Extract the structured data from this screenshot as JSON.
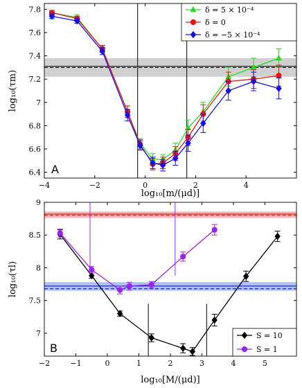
{
  "chart_data": [
    {
      "type": "line",
      "panel_label": "A",
      "xlabel": "log₁₀[m/(μd)]",
      "ylabel": "log₁₀(τm)",
      "xlim": [
        -4,
        6
      ],
      "ylim": [
        6.35,
        7.85
      ],
      "xticks": [
        -4,
        -2,
        0,
        2,
        4
      ],
      "xtick_labels": [
        "−4",
        "−2",
        "0",
        "2",
        "4"
      ],
      "yticks": [
        6.4,
        6.6,
        6.8,
        7.0,
        7.2,
        7.4,
        7.6,
        7.8
      ],
      "ytick_labels": [
        "6.4",
        "6.6",
        "6.8",
        "7",
        "7.2",
        "7.4",
        "7.6",
        "7.8"
      ],
      "legend_position": "top-right",
      "hband": {
        "center": 7.3,
        "low": 7.22,
        "high": 7.38,
        "color": "#aaaaaa"
      },
      "hlines": [
        {
          "y": 7.3,
          "style": "dashed",
          "color": "#000000"
        },
        {
          "y": 7.31,
          "style": "solid",
          "color": "#000000"
        }
      ],
      "vlines": [
        {
          "x": -0.3,
          "y0": 6.35,
          "y1": 7.85,
          "color": "#000000"
        },
        {
          "x": 1.65,
          "y0": 6.35,
          "y1": 7.85,
          "color": "#000000"
        }
      ],
      "series": [
        {
          "name": "δ = 5 × 10⁻⁴",
          "color": "#22dd22",
          "marker": "triangle",
          "x": [
            -3.7,
            -2.7,
            -1.7,
            -0.7,
            -0.2,
            0.3,
            0.7,
            1.2,
            1.7,
            2.3,
            3.3,
            4.3,
            5.3
          ],
          "y": [
            7.77,
            7.73,
            7.46,
            6.92,
            6.65,
            6.51,
            6.51,
            6.59,
            6.78,
            6.92,
            7.22,
            7.3,
            7.38
          ],
          "err": [
            0.02,
            0.02,
            0.03,
            0.05,
            0.04,
            0.05,
            0.04,
            0.06,
            0.07,
            0.08,
            0.08,
            0.08,
            0.08
          ]
        },
        {
          "name": "δ = 0",
          "color": "#ee1111",
          "marker": "circle",
          "x": [
            -3.7,
            -2.7,
            -1.7,
            -0.7,
            -0.2,
            0.3,
            0.7,
            1.2,
            1.7,
            2.3,
            3.3,
            4.3,
            5.3
          ],
          "y": [
            7.77,
            7.72,
            7.46,
            6.92,
            6.64,
            6.47,
            6.48,
            6.56,
            6.7,
            6.9,
            7.18,
            7.2,
            7.23
          ],
          "err": [
            0.02,
            0.02,
            0.03,
            0.05,
            0.04,
            0.05,
            0.05,
            0.06,
            0.07,
            0.08,
            0.08,
            0.08,
            0.09
          ]
        },
        {
          "name": "δ = −5 × 10⁻⁴",
          "color": "#1111ee",
          "marker": "diamond",
          "x": [
            -3.7,
            -2.7,
            -1.7,
            -0.7,
            -0.2,
            0.3,
            0.7,
            1.2,
            1.7,
            2.3,
            3.3,
            4.3,
            5.3
          ],
          "y": [
            7.74,
            7.7,
            7.44,
            6.89,
            6.63,
            6.48,
            6.46,
            6.52,
            6.65,
            6.82,
            7.1,
            7.18,
            7.12
          ],
          "err": [
            0.02,
            0.02,
            0.03,
            0.05,
            0.04,
            0.05,
            0.05,
            0.06,
            0.07,
            0.08,
            0.08,
            0.08,
            0.09
          ]
        }
      ]
    },
    {
      "type": "line",
      "panel_label": "B",
      "xlabel": "log₁₀[M/(μd)]",
      "ylabel": "log₁₀(τl)",
      "xlim": [
        -2,
        6
      ],
      "ylim": [
        6.65,
        9.0
      ],
      "xticks": [
        -2,
        -1,
        0,
        1,
        2,
        3,
        4,
        5
      ],
      "xtick_labels": [
        "−2",
        "−1",
        "0",
        "1",
        "2",
        "3",
        "4",
        "5"
      ],
      "yticks": [
        7.0,
        7.5,
        8.0,
        8.5,
        9.0
      ],
      "ytick_labels": [
        "7",
        "7.5",
        "8",
        "8.5",
        "9"
      ],
      "legend_position": "bottom-right",
      "hbands": [
        {
          "center": 8.8,
          "low": 8.76,
          "high": 8.86,
          "color": "#f08080"
        },
        {
          "center": 7.7,
          "low": 7.65,
          "high": 7.78,
          "color": "#6a8ef0"
        }
      ],
      "hlines": [
        {
          "y": 8.8,
          "style": "dashed",
          "color": "#cc0000"
        },
        {
          "y": 8.82,
          "style": "solid",
          "color": "#cc0000"
        },
        {
          "y": 7.68,
          "style": "dashed",
          "color": "#0000cc"
        },
        {
          "y": 7.72,
          "style": "solid",
          "color": "#0000cc"
        }
      ],
      "vlines": [
        {
          "x": -0.55,
          "y0": 7.95,
          "y1": 9.0,
          "color": "#aa22ee"
        },
        {
          "x": 2.15,
          "y0": 7.88,
          "y1": 9.0,
          "color": "#aa22ee"
        },
        {
          "x": 1.3,
          "y0": 6.65,
          "y1": 7.45,
          "color": "#000000"
        },
        {
          "x": 3.15,
          "y0": 6.65,
          "y1": 7.45,
          "color": "#000000"
        }
      ],
      "series": [
        {
          "name": "S = 10",
          "color": "#000000",
          "marker": "diamond",
          "x": [
            -1.5,
            -0.5,
            0.4,
            1.4,
            2.4,
            2.7,
            3.4,
            4.4,
            5.4
          ],
          "y": [
            8.51,
            7.88,
            7.3,
            6.93,
            6.77,
            6.72,
            7.2,
            7.87,
            8.48
          ],
          "err": [
            0.07,
            0.04,
            0.04,
            0.06,
            0.07,
            0.06,
            0.09,
            0.08,
            0.08
          ]
        },
        {
          "name": "S = 1",
          "color": "#9922ee",
          "marker": "circle",
          "x": [
            -1.5,
            -0.5,
            0.4,
            0.7,
            1.4,
            2.4,
            3.4
          ],
          "y": [
            8.53,
            7.97,
            7.66,
            7.72,
            7.74,
            8.17,
            8.58
          ],
          "err": [
            0.06,
            0.05,
            0.06,
            0.06,
            0.05,
            0.07,
            0.08
          ]
        }
      ]
    }
  ]
}
